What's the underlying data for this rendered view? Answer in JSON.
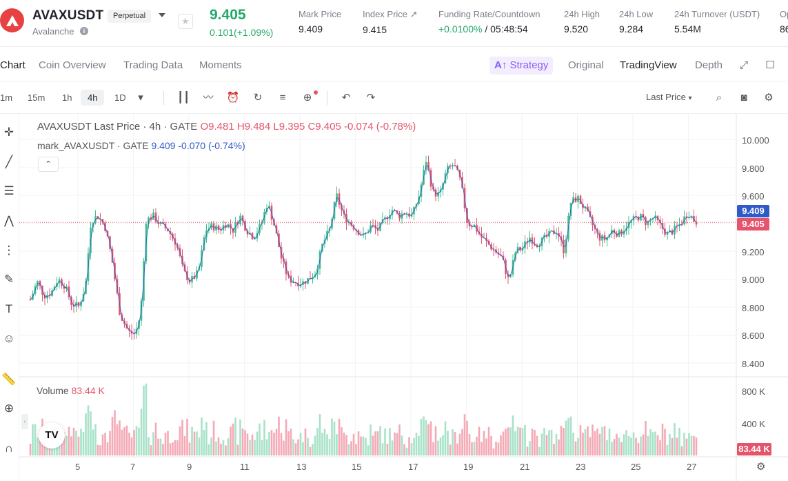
{
  "header": {
    "symbol": "AVAXUSDT",
    "badge": "Perpetual",
    "name": "Avalanche",
    "last_price": "9.405",
    "change": "0.101(+1.09%)",
    "stats": [
      {
        "label": "Mark Price",
        "value": "9.409"
      },
      {
        "label": "Index Price ↗",
        "value": "9.415"
      },
      {
        "label": "Funding Rate/Countdown",
        "value_green": "+0.0100%",
        "value": " / 05:48:54"
      },
      {
        "label": "24h High",
        "value": "9.520"
      },
      {
        "label": "24h Low",
        "value": "9.284"
      },
      {
        "label": "24h Turnover (USDT)",
        "value": "5.54M"
      },
      {
        "label": "Op",
        "value": "86"
      }
    ],
    "colors": {
      "up": "#22a86a",
      "down": "#e5546b",
      "brand": "#e84142"
    }
  },
  "tabs": {
    "left": [
      "Chart",
      "Coin Overview",
      "Trading Data",
      "Moments"
    ],
    "strategy": "Strategy",
    "original": "Original",
    "tradingview": "TradingView",
    "depth": "Depth"
  },
  "toolbar": {
    "timeframes": [
      "1m",
      "15m",
      "1h",
      "4h",
      "1D"
    ],
    "active": "4h",
    "price_source": "Last Price"
  },
  "legend": {
    "title": "AVAXUSDT Last Price · 4h · GATE",
    "open": "O9.481",
    "high": "H9.484",
    "low": "L9.395",
    "close": "C9.405",
    "chg": "-0.074 (-0.78%)",
    "mark_name": "mark_AVAXUSDT · GATE",
    "mark_value": "9.409",
    "mark_chg": "-0.070 (-0.74%)"
  },
  "volume": {
    "label": "Volume",
    "value": "83.44 K",
    "tag": "83.44 K"
  },
  "y_axis": [
    "10.000",
    "9.800",
    "9.600",
    "9.200",
    "9.000",
    "8.800",
    "8.600",
    "8.400"
  ],
  "vol_axis": [
    "800 K",
    "400 K"
  ],
  "price_tags": {
    "mark": "9.409",
    "last": "9.405"
  },
  "x_axis": [
    "5",
    "7",
    "9",
    "11",
    "13",
    "15",
    "17",
    "19",
    "21",
    "23",
    "25",
    "27"
  ]
}
